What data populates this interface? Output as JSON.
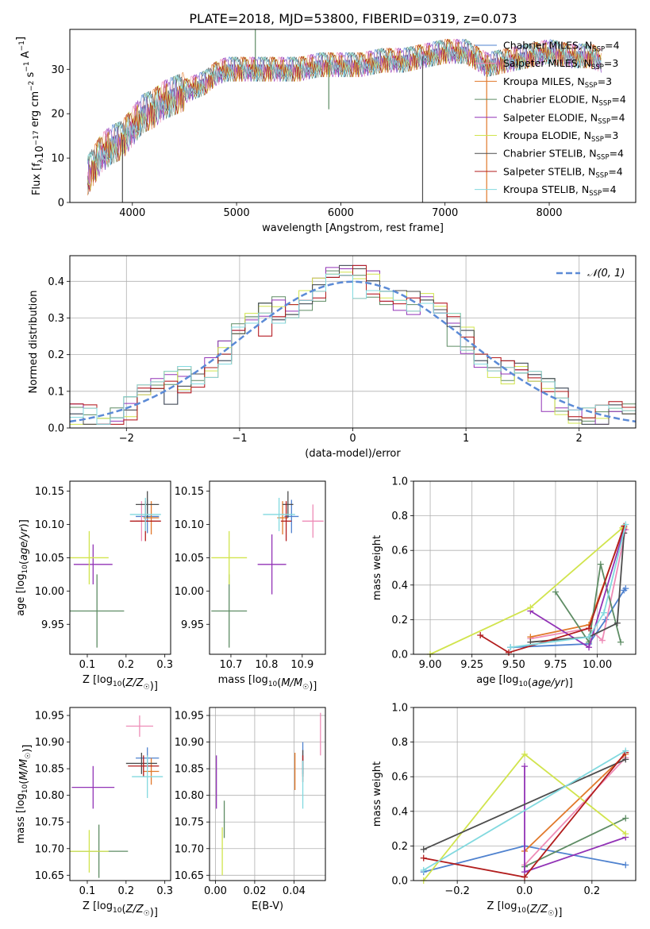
{
  "figure_title": "PLATE=2018, MJD=53800, FIBERID=0319, z=0.073",
  "series": [
    {
      "name": "Chabrier MILES, N_SSP=4",
      "pre": "Chabrier MILES, N",
      "sub": "SSP",
      "post": "=4",
      "color": "#4f82cf"
    },
    {
      "name": "Salpeter MILES, N_SSP=3",
      "pre": "Salpeter MILES, N",
      "sub": "SSP",
      "post": "=3",
      "color": "#ee8cb7"
    },
    {
      "name": "Kroupa MILES, N_SSP=3",
      "pre": "Kroupa MILES, N",
      "sub": "SSP",
      "post": "=3",
      "color": "#e1792b"
    },
    {
      "name": "Chabrier ELODIE, N_SSP=4",
      "pre": "Chabrier ELODIE, N",
      "sub": "SSP",
      "post": "=4",
      "color": "#5e8c64"
    },
    {
      "name": "Salpeter ELODIE, N_SSP=4",
      "pre": "Salpeter ELODIE, N",
      "sub": "SSP",
      "post": "=4",
      "color": "#9233b6"
    },
    {
      "name": "Kroupa ELODIE, N_SSP=3",
      "pre": "Kroupa ELODIE, N",
      "sub": "SSP",
      "post": "=3",
      "color": "#d1e44d"
    },
    {
      "name": "Chabrier STELIB, N_SSP=4",
      "pre": "Chabrier STELIB, N",
      "sub": "SSP",
      "post": "=4",
      "color": "#4d4d4d"
    },
    {
      "name": "Salpeter STELIB, N_SSP=4",
      "pre": "Salpeter STELIB, N",
      "sub": "SSP",
      "post": "=4",
      "color": "#b21d1d"
    },
    {
      "name": "Kroupa STELIB, N_SSP=4",
      "pre": "Kroupa STELIB, N",
      "sub": "SSP",
      "post": "=4",
      "color": "#82d9df"
    }
  ],
  "chart_data": [
    {
      "id": "spectrum",
      "type": "line",
      "xlabel": "wavelength [Angstrom, rest frame]",
      "ylabel": "Flux [f_λ 10^-17 erg cm^-2 s^-1 A^-1]",
      "xlim": [
        3400,
        8830
      ],
      "ylim": [
        0,
        39
      ],
      "xticks": [
        4000,
        5000,
        6000,
        7000,
        8000
      ],
      "yticks": [
        0,
        10,
        20,
        30
      ],
      "grid": false,
      "legend": "right",
      "continuum": [
        [
          3570,
          6
        ],
        [
          3650,
          9
        ],
        [
          3700,
          11
        ],
        [
          3800,
          13
        ],
        [
          3900,
          14
        ],
        [
          4000,
          17
        ],
        [
          4100,
          20
        ],
        [
          4200,
          21
        ],
        [
          4300,
          23
        ],
        [
          4400,
          24
        ],
        [
          4500,
          25
        ],
        [
          4600,
          26
        ],
        [
          4700,
          27
        ],
        [
          4800,
          29
        ],
        [
          4900,
          30
        ],
        [
          5000,
          30
        ],
        [
          5200,
          30
        ],
        [
          5400,
          30
        ],
        [
          5600,
          30
        ],
        [
          5800,
          31
        ],
        [
          6000,
          31
        ],
        [
          6200,
          31
        ],
        [
          6400,
          32
        ],
        [
          6600,
          32
        ],
        [
          6800,
          33
        ],
        [
          7000,
          34
        ],
        [
          7200,
          34
        ],
        [
          7400,
          31
        ],
        [
          7600,
          32
        ],
        [
          7800,
          33
        ],
        [
          8000,
          34
        ],
        [
          8200,
          33
        ],
        [
          8400,
          33
        ],
        [
          8500,
          32
        ]
      ],
      "noise": [
        0,
        4,
        -3,
        2,
        -4,
        1,
        5,
        -2,
        3,
        -5,
        0,
        2,
        -1,
        4,
        -3,
        1,
        -4,
        3,
        0,
        -2,
        5,
        -1,
        2,
        -3,
        4,
        -5,
        1,
        3,
        -2,
        0,
        2,
        -4,
        3,
        -1,
        4,
        -3,
        0,
        1,
        -2,
        5
      ],
      "spikes": [
        [
          3905,
          0,
          6
        ],
        [
          5180,
          39,
          3
        ],
        [
          5885,
          21,
          3
        ],
        [
          6785,
          0,
          6
        ],
        [
          7400,
          0,
          2
        ]
      ]
    },
    {
      "id": "residuals",
      "type": "step-histogram",
      "xlabel": "(data-model)/error",
      "ylabel": "Normed distribution",
      "xlim": [
        -2.5,
        2.5
      ],
      "ylim": [
        0,
        0.47
      ],
      "xticks": [
        -2,
        -1,
        0,
        1,
        2
      ],
      "yticks": [
        0.0,
        0.1,
        0.2,
        0.3,
        0.4
      ],
      "grid": true,
      "legend": "top-right",
      "bins": 42,
      "reference_label": "𝒩(0, 1)",
      "reference_color": "#5b8ad6",
      "noise": [
        0.02,
        -0.03,
        0.04,
        -0.01,
        0.03,
        -0.04,
        0.01,
        0.05,
        -0.02,
        0.03,
        -0.05,
        0.02,
        0.04,
        -0.03,
        0.01,
        -0.02,
        0.05,
        -0.04,
        0.02,
        0.03,
        -0.01,
        0.04,
        -0.05,
        0.02,
        -0.03,
        0.03,
        0.01,
        -0.04,
        0.05,
        -0.02,
        0.02,
        -0.01,
        0.04,
        -0.03,
        0.03,
        -0.05,
        0.01,
        0.02,
        -0.04,
        0.05,
        -0.02,
        0.03
      ]
    },
    {
      "id": "age_vs_Z",
      "type": "errorbar",
      "xlabel": "Z [log10(Z/Z☉)]",
      "ylabel": "age [log10(age/yr)]",
      "xlim": [
        0.055,
        0.315
      ],
      "ylim": [
        9.905,
        10.165
      ],
      "xticks": [
        0.1,
        0.2,
        0.3
      ],
      "yticks": [
        9.95,
        10.0,
        10.05,
        10.1,
        10.15
      ],
      "grid": false,
      "points": [
        {
          "s": 0,
          "x": 0.255,
          "y": 10.112,
          "ex": 0.03,
          "ey": 0.025
        },
        {
          "s": 1,
          "x": 0.24,
          "y": 10.105,
          "ex": 0.015,
          "ey": 0.03
        },
        {
          "s": 2,
          "x": 0.265,
          "y": 10.11,
          "ex": 0.02,
          "ey": 0.025
        },
        {
          "s": 3,
          "x": 0.125,
          "y": 9.97,
          "ex": 0.07,
          "ey": 0.055
        },
        {
          "s": 4,
          "x": 0.115,
          "y": 10.04,
          "ex": 0.05,
          "ey": 0.03
        },
        {
          "s": 5,
          "x": 0.105,
          "y": 10.05,
          "ex": 0.05,
          "ey": 0.04
        },
        {
          "s": 6,
          "x": 0.255,
          "y": 10.13,
          "ex": 0.03,
          "ey": 0.02
        },
        {
          "s": 7,
          "x": 0.25,
          "y": 10.105,
          "ex": 0.04,
          "ey": 0.03
        },
        {
          "s": 8,
          "x": 0.25,
          "y": 10.115,
          "ex": 0.04,
          "ey": 0.025
        }
      ]
    },
    {
      "id": "age_vs_mass",
      "type": "errorbar",
      "xlabel": "mass [log10(M/M☉)]",
      "ylabel": "",
      "xlim": [
        10.64,
        10.965
      ],
      "ylim": [
        9.905,
        10.165
      ],
      "xticks": [
        10.7,
        10.8,
        10.9
      ],
      "yticks": [
        9.95,
        10.0,
        10.05,
        10.1,
        10.15
      ],
      "grid": false,
      "points": [
        {
          "s": 0,
          "x": 10.87,
          "y": 10.112,
          "ex": 0.02,
          "ey": 0.025
        },
        {
          "s": 1,
          "x": 10.93,
          "y": 10.105,
          "ex": 0.03,
          "ey": 0.025
        },
        {
          "s": 2,
          "x": 10.845,
          "y": 10.11,
          "ex": 0.015,
          "ey": 0.025
        },
        {
          "s": 3,
          "x": 10.695,
          "y": 9.97,
          "ex": 0.05,
          "ey": 0.055
        },
        {
          "s": 4,
          "x": 10.815,
          "y": 10.04,
          "ex": 0.04,
          "ey": 0.045
        },
        {
          "s": 5,
          "x": 10.695,
          "y": 10.05,
          "ex": 0.05,
          "ey": 0.04
        },
        {
          "s": 6,
          "x": 10.86,
          "y": 10.13,
          "ex": 0.015,
          "ey": 0.02
        },
        {
          "s": 7,
          "x": 10.855,
          "y": 10.105,
          "ex": 0.015,
          "ey": 0.03
        },
        {
          "s": 8,
          "x": 10.835,
          "y": 10.115,
          "ex": 0.045,
          "ey": 0.025
        }
      ]
    },
    {
      "id": "weight_vs_age",
      "type": "line",
      "xlabel": "age [log10(age/yr)]",
      "ylabel": "mass weight",
      "xlim": [
        8.9,
        10.23
      ],
      "ylim": [
        0,
        1
      ],
      "xticks": [
        9.0,
        9.25,
        9.5,
        9.75,
        10.0
      ],
      "xticklabels": [
        "9.00",
        "9.25",
        "9.50",
        "9.75",
        "10.00"
      ],
      "yticks": [
        0.0,
        0.2,
        0.4,
        0.6,
        0.8,
        1.0
      ],
      "grid": true,
      "lines": [
        {
          "s": 0,
          "pts": [
            [
              9.48,
              0.04
            ],
            [
              9.95,
              0.06
            ],
            [
              10.05,
              0.2
            ],
            [
              10.16,
              0.37
            ],
            [
              10.17,
              0.38
            ]
          ]
        },
        {
          "s": 1,
          "pts": [
            [
              9.6,
              0.09
            ],
            [
              9.95,
              0.15
            ],
            [
              10.03,
              0.08
            ],
            [
              10.17,
              0.72
            ]
          ]
        },
        {
          "s": 2,
          "pts": [
            [
              9.6,
              0.1
            ],
            [
              9.95,
              0.17
            ],
            [
              10.16,
              0.73
            ]
          ]
        },
        {
          "s": 3,
          "pts": [
            [
              9.75,
              0.36
            ],
            [
              9.95,
              0.07
            ],
            [
              10.02,
              0.52
            ],
            [
              10.14,
              0.07
            ]
          ]
        },
        {
          "s": 4,
          "pts": [
            [
              9.6,
              0.25
            ],
            [
              9.95,
              0.04
            ],
            [
              10.16,
              0.72
            ]
          ]
        },
        {
          "s": 5,
          "pts": [
            [
              9.0,
              0.0
            ],
            [
              9.6,
              0.27
            ],
            [
              10.15,
              0.73
            ]
          ]
        },
        {
          "s": 6,
          "pts": [
            [
              9.6,
              0.07
            ],
            [
              9.95,
              0.1
            ],
            [
              10.12,
              0.18
            ],
            [
              10.16,
              0.7
            ]
          ]
        },
        {
          "s": 7,
          "pts": [
            [
              9.3,
              0.11
            ],
            [
              9.47,
              0.01
            ],
            [
              9.95,
              0.15
            ],
            [
              10.16,
              0.74
            ]
          ]
        },
        {
          "s": 8,
          "pts": [
            [
              9.48,
              0.04
            ],
            [
              9.95,
              0.1
            ],
            [
              10.04,
              0.24
            ],
            [
              10.17,
              0.75
            ]
          ]
        }
      ]
    },
    {
      "id": "mass_vs_Z",
      "type": "errorbar",
      "xlabel": "Z [log10(Z/Z☉)]",
      "ylabel": "mass [log10(M/M☉)]",
      "xlim": [
        0.055,
        0.315
      ],
      "ylim": [
        10.64,
        10.965
      ],
      "xticks": [
        0.1,
        0.2,
        0.3
      ],
      "yticks": [
        10.65,
        10.7,
        10.75,
        10.8,
        10.85,
        10.9,
        10.95
      ],
      "grid": false,
      "points": [
        {
          "s": 0,
          "x": 0.255,
          "y": 10.87,
          "ex": 0.03,
          "ey": 0.02
        },
        {
          "s": 1,
          "x": 0.235,
          "y": 10.93,
          "ex": 0.035,
          "ey": 0.02
        },
        {
          "s": 2,
          "x": 0.265,
          "y": 10.845,
          "ex": 0.02,
          "ey": 0.025
        },
        {
          "s": 3,
          "x": 0.13,
          "y": 10.695,
          "ex": 0.075,
          "ey": 0.05
        },
        {
          "s": 4,
          "x": 0.115,
          "y": 10.815,
          "ex": 0.055,
          "ey": 0.04
        },
        {
          "s": 5,
          "x": 0.105,
          "y": 10.695,
          "ex": 0.05,
          "ey": 0.04
        },
        {
          "s": 6,
          "x": 0.24,
          "y": 10.86,
          "ex": 0.04,
          "ey": 0.02
        },
        {
          "s": 7,
          "x": 0.245,
          "y": 10.855,
          "ex": 0.04,
          "ey": 0.02
        },
        {
          "s": 8,
          "x": 0.255,
          "y": 10.835,
          "ex": 0.04,
          "ey": 0.04
        }
      ]
    },
    {
      "id": "mass_vs_EBV",
      "type": "errorbar",
      "xlabel": "E(B-V)",
      "ylabel": "",
      "xlim": [
        -0.003,
        0.056
      ],
      "ylim": [
        10.64,
        10.965
      ],
      "xticks": [
        0.0,
        0.02,
        0.04
      ],
      "xticklabels": [
        "0.00",
        "0.02",
        "0.04"
      ],
      "yticks": [
        10.65,
        10.7,
        10.75,
        10.8,
        10.85,
        10.9,
        10.95
      ],
      "grid": true,
      "points": [
        {
          "s": 0,
          "x": 0.0445,
          "y": 10.87,
          "ex": 0,
          "ey": 0.03
        },
        {
          "s": 1,
          "x": 0.0535,
          "y": 10.915,
          "ex": 0,
          "ey": 0.04
        },
        {
          "s": 2,
          "x": 0.0405,
          "y": 10.845,
          "ex": 0,
          "ey": 0.035
        },
        {
          "s": 3,
          "x": 0.0045,
          "y": 10.755,
          "ex": 0,
          "ey": 0.035
        },
        {
          "s": 4,
          "x": 0.0005,
          "y": 10.825,
          "ex": 0,
          "ey": 0.05
        },
        {
          "s": 5,
          "x": 0.0035,
          "y": 10.695,
          "ex": 0,
          "ey": 0.045
        },
        {
          "s": 6,
          "x": 0.0445,
          "y": 10.86,
          "ex": 0,
          "ey": 0.025
        },
        {
          "s": 7,
          "x": 0.0445,
          "y": 10.85,
          "ex": 0,
          "ey": 0.025
        },
        {
          "s": 8,
          "x": 0.0445,
          "y": 10.82,
          "ex": 0,
          "ey": 0.045
        }
      ]
    },
    {
      "id": "weight_vs_Z",
      "type": "line",
      "xlabel": "Z [log10(Z/Z☉)]",
      "ylabel": "mass weight",
      "xlim": [
        -0.33,
        0.33
      ],
      "ylim": [
        0,
        1
      ],
      "xticks": [
        -0.2,
        0.0,
        0.2
      ],
      "xticklabels": [
        "−0.2",
        "0.0",
        "0.2"
      ],
      "yticks": [
        0.0,
        0.2,
        0.4,
        0.6,
        0.8,
        1.0
      ],
      "grid": true,
      "lines": [
        {
          "s": 0,
          "pts": [
            [
              -0.3,
              0.05
            ],
            [
              0.0,
              0.2
            ],
            [
              0.3,
              0.09
            ]
          ]
        },
        {
          "s": 1,
          "pts": [
            [
              0.0,
              0.09
            ],
            [
              0.3,
              0.71
            ]
          ]
        },
        {
          "s": 2,
          "pts": [
            [
              0.0,
              0.17
            ],
            [
              0.3,
              0.73
            ]
          ]
        },
        {
          "s": 3,
          "pts": [
            [
              0.0,
              0.08
            ],
            [
              0.3,
              0.36
            ]
          ]
        },
        {
          "s": 4,
          "pts": [
            [
              0.0,
              0.66
            ],
            [
              0.0,
              0.05
            ],
            [
              0.3,
              0.25
            ]
          ]
        },
        {
          "s": 5,
          "pts": [
            [
              -0.3,
              0.0
            ],
            [
              0.0,
              0.73
            ],
            [
              0.3,
              0.27
            ]
          ]
        },
        {
          "s": 6,
          "pts": [
            [
              -0.3,
              0.18
            ],
            [
              0.3,
              0.7
            ]
          ]
        },
        {
          "s": 7,
          "pts": [
            [
              -0.3,
              0.13
            ],
            [
              0.0,
              0.02
            ],
            [
              0.3,
              0.74
            ]
          ]
        },
        {
          "s": 8,
          "pts": [
            [
              -0.3,
              0.06
            ],
            [
              0.3,
              0.75
            ]
          ]
        }
      ]
    }
  ]
}
